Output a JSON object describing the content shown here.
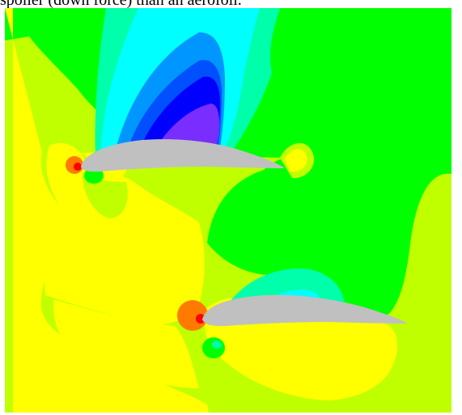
{
  "caption": {
    "text": "spoiler (down force) than an aerofoil."
  },
  "figure": {
    "kind": "cfd-pressure-contour",
    "airfoil_count": 2,
    "palette": {
      "background_lime": "#c0ff00",
      "yellow": "#ffff00",
      "green": "#00ff00",
      "mint": "#00ffaa",
      "cyan": "#00ffff",
      "light_blue": "#0096ff",
      "blue": "#0050ff",
      "deep_blue": "#0000ff",
      "violet": "#7a2dff",
      "orange": "#ff7a00",
      "red": "#ff0000",
      "airfoil_gray": "#c0c0c0"
    }
  }
}
